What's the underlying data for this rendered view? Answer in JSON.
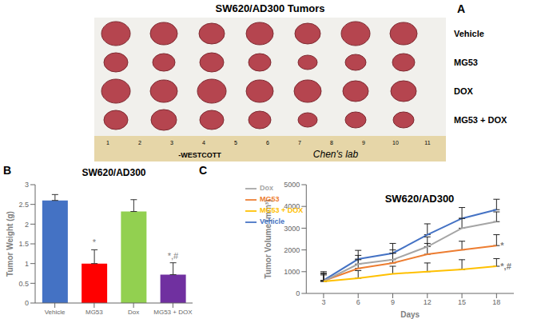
{
  "photo_panel": {
    "panel_label": "A",
    "title": "SW620/AD300 Tumors",
    "rows": [
      "Vehicle",
      "MG53",
      "DOX",
      "MG53 + DOX"
    ],
    "ruler_numbers": [
      "1",
      "2",
      "3",
      "4",
      "5",
      "6",
      "7",
      "8",
      "9",
      "10",
      "11"
    ],
    "ruler_brand": "-WESTCOTT",
    "ruler_note": "Chen's lab"
  },
  "chart_data": [
    {
      "type": "bar",
      "panel_label": "B",
      "title": "SW620/AD300",
      "y_label": "Tumor Weight (g)",
      "categories": [
        "Vehicle",
        "MG53",
        "Dox",
        "MG53 + DOX"
      ],
      "values": [
        2.6,
        1.0,
        2.32,
        0.72
      ],
      "errors": [
        0.15,
        0.35,
        0.3,
        0.3
      ],
      "colors": [
        "#4472c4",
        "#ff0000",
        "#92d050",
        "#7030a0"
      ],
      "ylim": [
        0,
        3
      ],
      "yticks": [
        0,
        0.5,
        1,
        1.5,
        2,
        2.5,
        3
      ],
      "annotations": [
        {
          "category": "MG53",
          "text": "*"
        },
        {
          "category": "MG53 + DOX",
          "text": "*,#"
        }
      ]
    },
    {
      "type": "line",
      "panel_label": "C",
      "title": "SW620/AD300",
      "x_label": "Days",
      "y_label": "Tumor Volume (mm³)",
      "x": [
        3,
        6,
        9,
        12,
        15,
        18
      ],
      "series": [
        {
          "name": "Vehicle",
          "color": "#4472c4",
          "values": [
            600,
            1580,
            1850,
            2700,
            3450,
            3850
          ],
          "errors": [
            400,
            400,
            450,
            500,
            500,
            480
          ]
        },
        {
          "name": "MG53",
          "color": "#ed7d31",
          "values": [
            580,
            1150,
            1400,
            1800,
            2000,
            2200
          ],
          "errors": [
            350,
            400,
            450,
            500,
            400,
            500
          ]
        },
        {
          "name": "Dox",
          "color": "#a5a5a5",
          "values": [
            560,
            1350,
            1550,
            2150,
            3000,
            3300
          ],
          "errors": [
            350,
            400,
            450,
            450,
            450,
            450
          ]
        },
        {
          "name": "MG53 + DOX",
          "color": "#ffc000",
          "values": [
            550,
            700,
            900,
            1000,
            1100,
            1250
          ],
          "errors": [
            300,
            350,
            350,
            400,
            450,
            350
          ]
        }
      ],
      "xlim": [
        1.5,
        19.5
      ],
      "xticks": [
        3,
        6,
        9,
        12,
        15,
        18
      ],
      "ylim": [
        0,
        5000
      ],
      "yticks": [
        0,
        1000,
        2000,
        3000,
        4000,
        5000
      ],
      "legend": "top-left",
      "annotations": [
        {
          "series": "MG53",
          "x": 18,
          "text": "*"
        },
        {
          "series": "MG53 + DOX",
          "x": 18,
          "text": "*,#"
        }
      ]
    }
  ]
}
